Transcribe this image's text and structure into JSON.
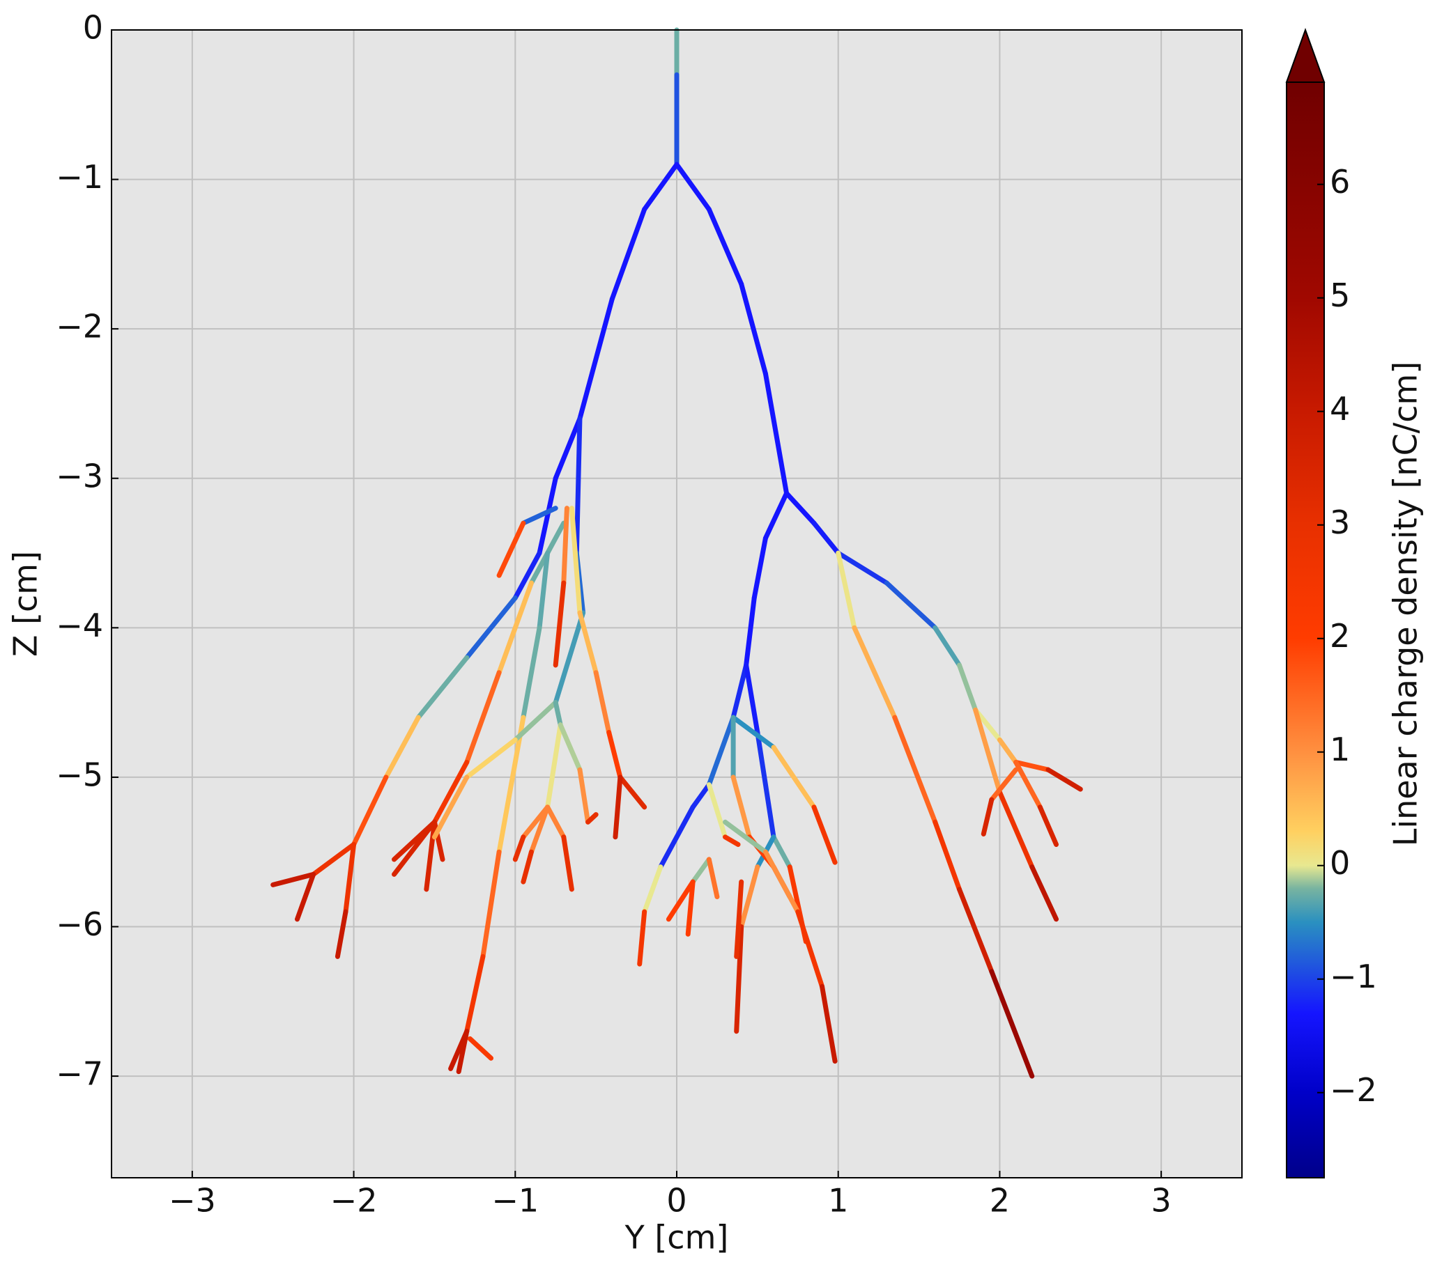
{
  "chart_data": {
    "type": "line",
    "xlabel": "Y [cm]",
    "ylabel": "Z [cm]",
    "xlim": [
      -3.5,
      3.5
    ],
    "ylim": [
      -7.68,
      0
    ],
    "xticks": [
      {
        "value": -3,
        "label": "−3"
      },
      {
        "value": -2,
        "label": "−2"
      },
      {
        "value": -1,
        "label": "−1"
      },
      0,
      1,
      2,
      3
    ],
    "yticks": [
      0,
      {
        "value": -1,
        "label": "−1"
      },
      {
        "value": -2,
        "label": "−2"
      },
      {
        "value": -3,
        "label": "−3"
      },
      {
        "value": -4,
        "label": "−4"
      },
      {
        "value": -5,
        "label": "−5"
      },
      {
        "value": -6,
        "label": "−6"
      },
      {
        "value": -7,
        "label": "−7"
      }
    ],
    "grid": true,
    "colorbar": {
      "label": "Linear charge density [nC/cm]",
      "clim": [
        -2.75,
        6.9
      ],
      "extend": "max",
      "ticks": [
        {
          "value": -2,
          "label": "−2"
        },
        {
          "value": -1,
          "label": "−1"
        },
        0,
        1,
        2,
        3,
        4,
        5,
        6
      ]
    },
    "colormap": [
      {
        "value": -2.75,
        "color": "#00008a"
      },
      {
        "value": -2.0,
        "color": "#0000c8"
      },
      {
        "value": -1.3,
        "color": "#1515ff"
      },
      {
        "value": -0.5,
        "color": "#2a90c0"
      },
      {
        "value": -0.2,
        "color": "#78b4a0"
      },
      {
        "value": 0,
        "color": "#e8e890"
      },
      {
        "value": 0.3,
        "color": "#ffd060"
      },
      {
        "value": 1,
        "color": "#ff9040"
      },
      {
        "value": 2,
        "color": "#ff3c00"
      },
      {
        "value": 3,
        "color": "#e83000"
      },
      {
        "value": 4,
        "color": "#c81a00"
      },
      {
        "value": 5,
        "color": "#a00800"
      },
      {
        "value": 6.9,
        "color": "#700000"
      }
    ],
    "series": [
      {
        "x": [
          0,
          0,
          0
        ],
        "y": [
          0,
          -0.3,
          -0.9
        ],
        "c": [
          0,
          -0.5,
          -1.3
        ]
      },
      {
        "x": [
          0,
          -0.2,
          -0.4,
          -0.55,
          -0.6
        ],
        "y": [
          -0.9,
          -1.2,
          -1.8,
          -2.4,
          -2.6
        ],
        "c": [
          -1.3,
          -1.3,
          -1.3,
          -1.3,
          -1.3
        ]
      },
      {
        "x": [
          -0.6,
          -0.75,
          -0.85,
          -1.0,
          -1.3,
          -1.6,
          -1.8,
          -2.0,
          -2.25,
          -2.5
        ],
        "y": [
          -2.6,
          -3.0,
          -3.5,
          -3.8,
          -4.2,
          -4.6,
          -5.0,
          -5.45,
          -5.65,
          -5.72
        ],
        "c": [
          -1.3,
          -1.3,
          -1.3,
          -1.1,
          -0.5,
          0,
          1,
          2.5,
          3,
          5
        ]
      },
      {
        "x": [
          -2.25,
          -2.35
        ],
        "y": [
          -5.65,
          -5.95
        ],
        "c": [
          3,
          5
        ]
      },
      {
        "x": [
          -2.0,
          -2.05,
          -2.1
        ],
        "y": [
          -5.45,
          -5.9,
          -6.2
        ],
        "c": [
          2.5,
          3,
          5
        ]
      },
      {
        "x": [
          -0.75,
          -0.95,
          -1.1
        ],
        "y": [
          -3.2,
          -3.3,
          -3.65
        ],
        "c": [
          -1.3,
          -0.3,
          4
        ]
      },
      {
        "x": [
          -0.7,
          -0.9,
          -1.1,
          -1.3,
          -1.5,
          -1.75
        ],
        "y": [
          -3.3,
          -3.7,
          -4.3,
          -4.9,
          -5.3,
          -5.55
        ],
        "c": [
          -0.5,
          0,
          1,
          2,
          3,
          4
        ]
      },
      {
        "x": [
          -1.5,
          -1.75
        ],
        "y": [
          -5.3,
          -5.65
        ],
        "c": [
          3,
          4
        ]
      },
      {
        "x": [
          -1.5,
          -1.55
        ],
        "y": [
          -5.3,
          -5.75
        ],
        "c": [
          3,
          4
        ]
      },
      {
        "x": [
          -1.5,
          -1.45
        ],
        "y": [
          -5.3,
          -5.55
        ],
        "c": [
          3,
          4
        ]
      },
      {
        "x": [
          -0.8,
          -0.85,
          -0.95,
          -1.1,
          -1.2,
          -1.3,
          -1.4
        ],
        "y": [
          -3.5,
          -4.0,
          -4.6,
          -5.5,
          -6.2,
          -6.7,
          -6.95
        ],
        "c": [
          -0.3,
          -0.3,
          -0.2,
          1,
          2,
          3,
          5
        ]
      },
      {
        "x": [
          -1.3,
          -1.35
        ],
        "y": [
          -6.7,
          -6.97
        ],
        "c": [
          3,
          5
        ]
      },
      {
        "x": [
          -1.28,
          -1.15
        ],
        "y": [
          -6.75,
          -6.88
        ],
        "c": [
          -0.5,
          5
        ]
      },
      {
        "x": [
          -0.6,
          -0.62,
          -0.58,
          -0.75,
          -1.0,
          -1.3,
          -1.5
        ],
        "y": [
          -2.6,
          -3.5,
          -3.9,
          -4.5,
          -4.75,
          -5.0,
          -5.4
        ],
        "c": [
          -1.3,
          -1.0,
          -0.5,
          -0.3,
          0,
          0.5,
          1
        ]
      },
      {
        "x": [
          -0.75,
          -0.72,
          -0.8,
          -0.95,
          -1.0
        ],
        "y": [
          -4.5,
          -4.65,
          -5.2,
          -5.4,
          -5.55
        ],
        "c": [
          -0.3,
          -0.2,
          0.3,
          2,
          4
        ]
      },
      {
        "x": [
          -0.8,
          -0.9,
          -0.95
        ],
        "y": [
          -5.2,
          -5.5,
          -5.7
        ],
        "c": [
          0.3,
          2,
          4
        ]
      },
      {
        "x": [
          -0.8,
          -0.7,
          -0.65
        ],
        "y": [
          -5.2,
          -5.4,
          -5.75
        ],
        "c": [
          0.3,
          2,
          4
        ]
      },
      {
        "x": [
          -0.72,
          -0.6,
          -0.55,
          -0.5
        ],
        "y": [
          -4.65,
          -4.95,
          -5.3,
          -5.25
        ],
        "c": [
          -0.2,
          0,
          2,
          4
        ]
      },
      {
        "x": [
          -0.65,
          -0.6,
          -0.5,
          -0.42,
          -0.35,
          -0.2
        ],
        "y": [
          -3.2,
          -3.9,
          -4.3,
          -4.7,
          -5.0,
          -5.2
        ],
        "c": [
          0,
          0.3,
          0.8,
          1.5,
          2.5,
          4
        ]
      },
      {
        "x": [
          -0.35,
          -0.38
        ],
        "y": [
          -5.0,
          -5.4
        ],
        "c": [
          2.5,
          5
        ]
      },
      {
        "x": [
          -0.68,
          -0.7,
          -0.75
        ],
        "y": [
          -3.2,
          -3.7,
          -4.25
        ],
        "c": [
          0.3,
          2,
          4
        ]
      },
      {
        "x": [
          0,
          0.2,
          0.4,
          0.55,
          0.68
        ],
        "y": [
          -0.9,
          -1.2,
          -1.7,
          -2.3,
          -3.1
        ],
        "c": [
          -1.3,
          -1.3,
          -1.3,
          -1.3,
          -1.3
        ]
      },
      {
        "x": [
          0.68,
          0.85,
          1.0,
          1.3,
          1.6,
          1.75,
          1.85,
          2.0,
          2.1,
          2.3,
          2.5
        ],
        "y": [
          -3.1,
          -3.3,
          -3.5,
          -3.7,
          -4.0,
          -4.25,
          -4.55,
          -4.75,
          -4.9,
          -4.95,
          -5.08
        ],
        "c": [
          -1.3,
          -1.3,
          -1.2,
          -1,
          -0.7,
          0,
          -0.3,
          0.3,
          1,
          2.5,
          5
        ]
      },
      {
        "x": [
          2.1,
          2.25,
          2.35
        ],
        "y": [
          -4.9,
          -5.2,
          -5.45
        ],
        "c": [
          1,
          2,
          5
        ]
      },
      {
        "x": [
          1.85,
          2.0,
          2.2,
          2.35
        ],
        "y": [
          -4.55,
          -5.1,
          -5.6,
          -5.95
        ],
        "c": [
          -0.3,
          2,
          3.5,
          5
        ]
      },
      {
        "x": [
          2.1,
          1.95,
          1.9
        ],
        "y": [
          -4.95,
          -5.15,
          -5.38
        ],
        "c": [
          1,
          2,
          5
        ]
      },
      {
        "x": [
          1.0,
          1.1,
          1.35,
          1.6,
          1.75,
          1.95,
          2.2
        ],
        "y": [
          -3.5,
          -4.0,
          -4.6,
          -5.3,
          -5.75,
          -6.3,
          -7.0
        ],
        "c": [
          -0.2,
          0.3,
          1,
          2,
          3,
          4.5,
          6
        ]
      },
      {
        "x": [
          0.68,
          0.55,
          0.48,
          0.43,
          0.35,
          0.25,
          0.2,
          0.1,
          -0.1,
          -0.2,
          -0.23
        ],
        "y": [
          -3.1,
          -3.4,
          -3.8,
          -4.25,
          -4.6,
          -4.9,
          -5.05,
          -5.2,
          -5.6,
          -5.9,
          -6.25
        ],
        "c": [
          -1.3,
          -1.3,
          -1.3,
          -1.3,
          -1,
          -0.5,
          -1,
          -1.3,
          -1,
          1,
          4
        ]
      },
      {
        "x": [
          0.43,
          0.5,
          0.6,
          0.7,
          0.8
        ],
        "y": [
          -4.25,
          -4.7,
          -5.4,
          -5.6,
          -6.1
        ],
        "c": [
          -1.3,
          -1.2,
          -1,
          0.5,
          4
        ]
      },
      {
        "x": [
          0.6,
          0.5,
          0.4,
          0.37
        ],
        "y": [
          -5.4,
          -5.6,
          -6.0,
          -6.7
        ],
        "c": [
          -1,
          0,
          2,
          5
        ]
      },
      {
        "x": [
          0.4,
          0.37
        ],
        "y": [
          -5.7,
          -6.2
        ],
        "c": [
          1,
          5
        ]
      },
      {
        "x": [
          0.35,
          0.6,
          0.85,
          0.98
        ],
        "y": [
          -4.6,
          -4.8,
          -5.2,
          -5.57
        ],
        "c": [
          -1,
          0,
          1,
          4
        ]
      },
      {
        "x": [
          0.35,
          0.35,
          0.45,
          0.6,
          0.7
        ],
        "y": [
          -4.6,
          -5.0,
          -5.4,
          -5.6,
          -5.8
        ],
        "c": [
          -1,
          0.3,
          1.5,
          2.5,
          4
        ]
      },
      {
        "x": [
          0.2,
          0.3,
          0.38
        ],
        "y": [
          -5.05,
          -5.4,
          -5.45
        ],
        "c": [
          -1,
          1,
          4
        ]
      },
      {
        "x": [
          0.3,
          0.55,
          0.75,
          0.9,
          0.98
        ],
        "y": [
          -5.3,
          -5.5,
          -5.9,
          -6.4,
          -6.9
        ],
        "c": [
          -0.3,
          0,
          2,
          3,
          5
        ]
      },
      {
        "x": [
          0.2,
          0.1,
          -0.05
        ],
        "y": [
          -5.55,
          -5.7,
          -5.95
        ],
        "c": [
          -0.3,
          0,
          4
        ]
      },
      {
        "x": [
          0.1,
          0.07
        ],
        "y": [
          -5.7,
          -6.05
        ],
        "c": [
          0,
          4
        ]
      },
      {
        "x": [
          0.2,
          0.25
        ],
        "y": [
          -5.55,
          -5.8
        ],
        "c": [
          -0.3,
          3
        ]
      }
    ]
  }
}
